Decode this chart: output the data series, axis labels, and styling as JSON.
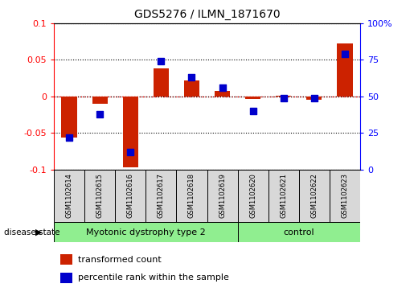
{
  "title": "GDS5276 / ILMN_1871670",
  "samples": [
    "GSM1102614",
    "GSM1102615",
    "GSM1102616",
    "GSM1102617",
    "GSM1102618",
    "GSM1102619",
    "GSM1102620",
    "GSM1102621",
    "GSM1102622",
    "GSM1102623"
  ],
  "red_values": [
    -0.056,
    -0.01,
    -0.097,
    0.038,
    0.022,
    0.008,
    -0.003,
    0.001,
    -0.005,
    0.073
  ],
  "blue_percentiles": [
    22,
    38,
    12,
    74,
    63,
    56,
    40,
    49,
    49,
    79
  ],
  "ylim": [
    -0.1,
    0.1
  ],
  "y2lim": [
    0,
    100
  ],
  "yticks": [
    -0.1,
    -0.05,
    0.0,
    0.05,
    0.1
  ],
  "ytick_labels": [
    "-0.1",
    "-0.05",
    "0",
    "0.05",
    "0.1"
  ],
  "y2ticks": [
    0,
    25,
    50,
    75,
    100
  ],
  "y2tick_labels": [
    "0",
    "25",
    "50",
    "75",
    "100%"
  ],
  "disease_groups": [
    {
      "label": "Myotonic dystrophy type 2",
      "start": 0,
      "end": 5
    },
    {
      "label": "control",
      "start": 6,
      "end": 9
    }
  ],
  "group_color": "#90ee90",
  "disease_state_label": "disease state",
  "legend_red": "transformed count",
  "legend_blue": "percentile rank within the sample",
  "bar_color": "#cc2200",
  "dot_color": "#0000cc",
  "cell_bg_color": "#d8d8d8",
  "bar_width": 0.5,
  "dot_size": 30
}
